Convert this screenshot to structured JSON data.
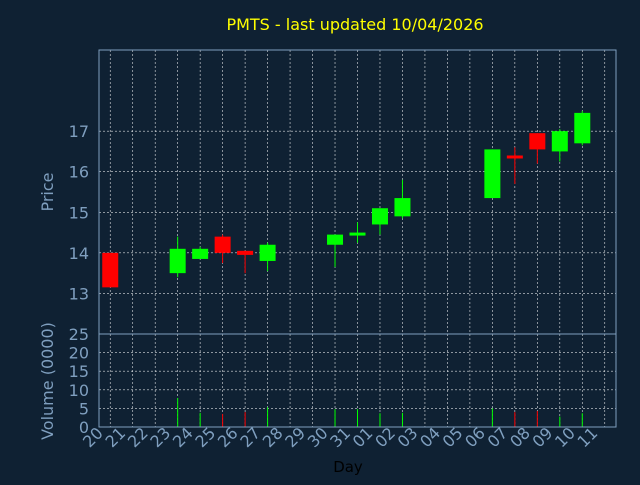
{
  "chart_data": {
    "type": "candlestick",
    "title": "PMTS - last updated 10/04/2026",
    "ylabel": "Price",
    "volume_ylabel": "Volume (0000)",
    "xlabel": "Day",
    "ylim": [
      12.0,
      19.0
    ],
    "y_ticks": [
      13,
      14,
      15,
      16,
      17
    ],
    "volume_ylim": [
      0,
      25
    ],
    "volume_ticks": [
      0,
      5,
      10,
      15,
      20,
      25
    ],
    "x_tick_labels": [
      "20",
      "21",
      "22",
      "23",
      "24",
      "25",
      "26",
      "27",
      "28",
      "29",
      "30",
      "31",
      "01",
      "02",
      "03",
      "04",
      "05",
      "06",
      "07",
      "08",
      "09",
      "10",
      "11"
    ],
    "grid": true,
    "colors": {
      "background": "#0f2133",
      "axis_text": "#7f9fbf",
      "title": "#ffff00",
      "up": "#00ff00",
      "down": "#ff0000",
      "grid": "#ffffff"
    },
    "candles": [
      {
        "day": "20",
        "open": 14.0,
        "high": 14.0,
        "low": 13.15,
        "close": 13.15,
        "volume": 0.0
      },
      {
        "day": "23",
        "open": 13.5,
        "high": 14.4,
        "low": 13.4,
        "close": 14.1,
        "volume": 7.8
      },
      {
        "day": "24",
        "open": 13.85,
        "high": 14.15,
        "low": 13.85,
        "close": 14.1,
        "volume": 3.8
      },
      {
        "day": "25",
        "open": 14.4,
        "high": 14.45,
        "low": 13.75,
        "close": 14.0,
        "volume": 3.5
      },
      {
        "day": "26",
        "open": 14.05,
        "high": 14.05,
        "low": 13.5,
        "close": 13.95,
        "volume": 4.0
      },
      {
        "day": "27",
        "open": 13.8,
        "high": 14.25,
        "low": 13.55,
        "close": 14.2,
        "volume": 5.3
      },
      {
        "day": "30",
        "open": 14.2,
        "high": 14.45,
        "low": 13.65,
        "close": 14.45,
        "volume": 4.8
      },
      {
        "day": "31",
        "open": 14.45,
        "high": 14.75,
        "low": 14.25,
        "close": 14.5,
        "volume": 4.8
      },
      {
        "day": "01",
        "open": 14.7,
        "high": 15.1,
        "low": 14.45,
        "close": 15.1,
        "volume": 3.7
      },
      {
        "day": "02",
        "open": 14.9,
        "high": 15.8,
        "low": 14.85,
        "close": 15.35,
        "volume": 3.8
      },
      {
        "day": "06",
        "open": 15.35,
        "high": 16.55,
        "low": 15.35,
        "close": 16.55,
        "volume": 5.0
      },
      {
        "day": "07",
        "open": 16.4,
        "high": 16.6,
        "low": 15.7,
        "close": 16.35,
        "volume": 4.0
      },
      {
        "day": "08",
        "open": 16.95,
        "high": 16.95,
        "low": 16.2,
        "close": 16.55,
        "volume": 4.3
      },
      {
        "day": "09",
        "open": 16.5,
        "high": 17.05,
        "low": 16.25,
        "close": 17.0,
        "volume": 2.8
      },
      {
        "day": "10",
        "open": 16.7,
        "high": 17.5,
        "low": 16.65,
        "close": 17.45,
        "volume": 3.7
      }
    ]
  }
}
